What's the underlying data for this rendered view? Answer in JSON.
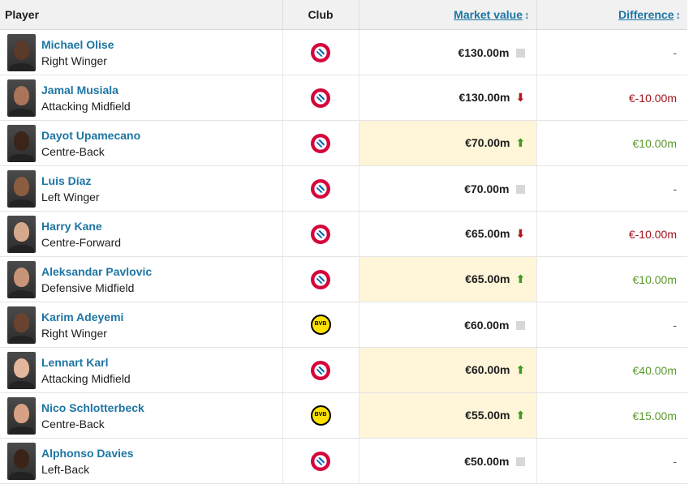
{
  "headers": {
    "player": "Player",
    "club": "Club",
    "market_value": "Market value",
    "difference": "Difference",
    "sort_glyph": "↕"
  },
  "players": [
    {
      "name": "Michael Olise",
      "position": "Right Winger",
      "club": "fcb",
      "value": "€130.00m",
      "trend": "none",
      "diff": "-",
      "diff_type": "neu",
      "highlight": false,
      "skin": "#5a3a28"
    },
    {
      "name": "Jamal Musiala",
      "position": "Attacking Midfield",
      "club": "fcb",
      "value": "€130.00m",
      "trend": "down",
      "diff": "€-10.00m",
      "diff_type": "neg",
      "highlight": false,
      "skin": "#a9745a"
    },
    {
      "name": "Dayot Upamecano",
      "position": "Centre-Back",
      "club": "fcb",
      "value": "€70.00m",
      "trend": "up",
      "diff": "€10.00m",
      "diff_type": "pos",
      "highlight": true,
      "skin": "#3b2418"
    },
    {
      "name": "Luis Díaz",
      "position": "Left Winger",
      "club": "fcb",
      "value": "€70.00m",
      "trend": "none",
      "diff": "-",
      "diff_type": "neu",
      "highlight": false,
      "skin": "#8a5c40"
    },
    {
      "name": "Harry Kane",
      "position": "Centre-Forward",
      "club": "fcb",
      "value": "€65.00m",
      "trend": "down",
      "diff": "€-10.00m",
      "diff_type": "neg",
      "highlight": false,
      "skin": "#d7a98c"
    },
    {
      "name": "Aleksandar Pavlovic",
      "position": "Defensive Midfield",
      "club": "fcb",
      "value": "€65.00m",
      "trend": "up",
      "diff": "€10.00m",
      "diff_type": "pos",
      "highlight": true,
      "skin": "#c79477"
    },
    {
      "name": "Karim Adeyemi",
      "position": "Right Winger",
      "club": "bvb",
      "value": "€60.00m",
      "trend": "none",
      "diff": "-",
      "diff_type": "neu",
      "highlight": false,
      "skin": "#6a4330"
    },
    {
      "name": "Lennart Karl",
      "position": "Attacking Midfield",
      "club": "fcb",
      "value": "€60.00m",
      "trend": "up",
      "diff": "€40.00m",
      "diff_type": "pos",
      "highlight": true,
      "skin": "#e2b79c"
    },
    {
      "name": "Nico Schlotterbeck",
      "position": "Centre-Back",
      "club": "bvb",
      "value": "€55.00m",
      "trend": "up",
      "diff": "€15.00m",
      "diff_type": "pos",
      "highlight": true,
      "skin": "#d6a185"
    },
    {
      "name": "Alphonso Davies",
      "position": "Left-Back",
      "club": "fcb",
      "value": "€50.00m",
      "trend": "none",
      "diff": "-",
      "diff_type": "neu",
      "highlight": false,
      "skin": "#3a2418"
    }
  ],
  "colors": {
    "link": "#1d75a3",
    "highlight_bg": "#fff5d9",
    "up": "#3d9a1b",
    "down": "#b0161d",
    "diff_pos": "#5a9b2c",
    "diff_neg": "#a3111b"
  },
  "icons": {
    "fcb": "fc-bayern-crest-icon",
    "bvb": "bvb-crest-icon",
    "up": "trend-up-arrow-icon",
    "down": "trend-down-arrow-icon",
    "none": "trend-unchanged-icon"
  }
}
